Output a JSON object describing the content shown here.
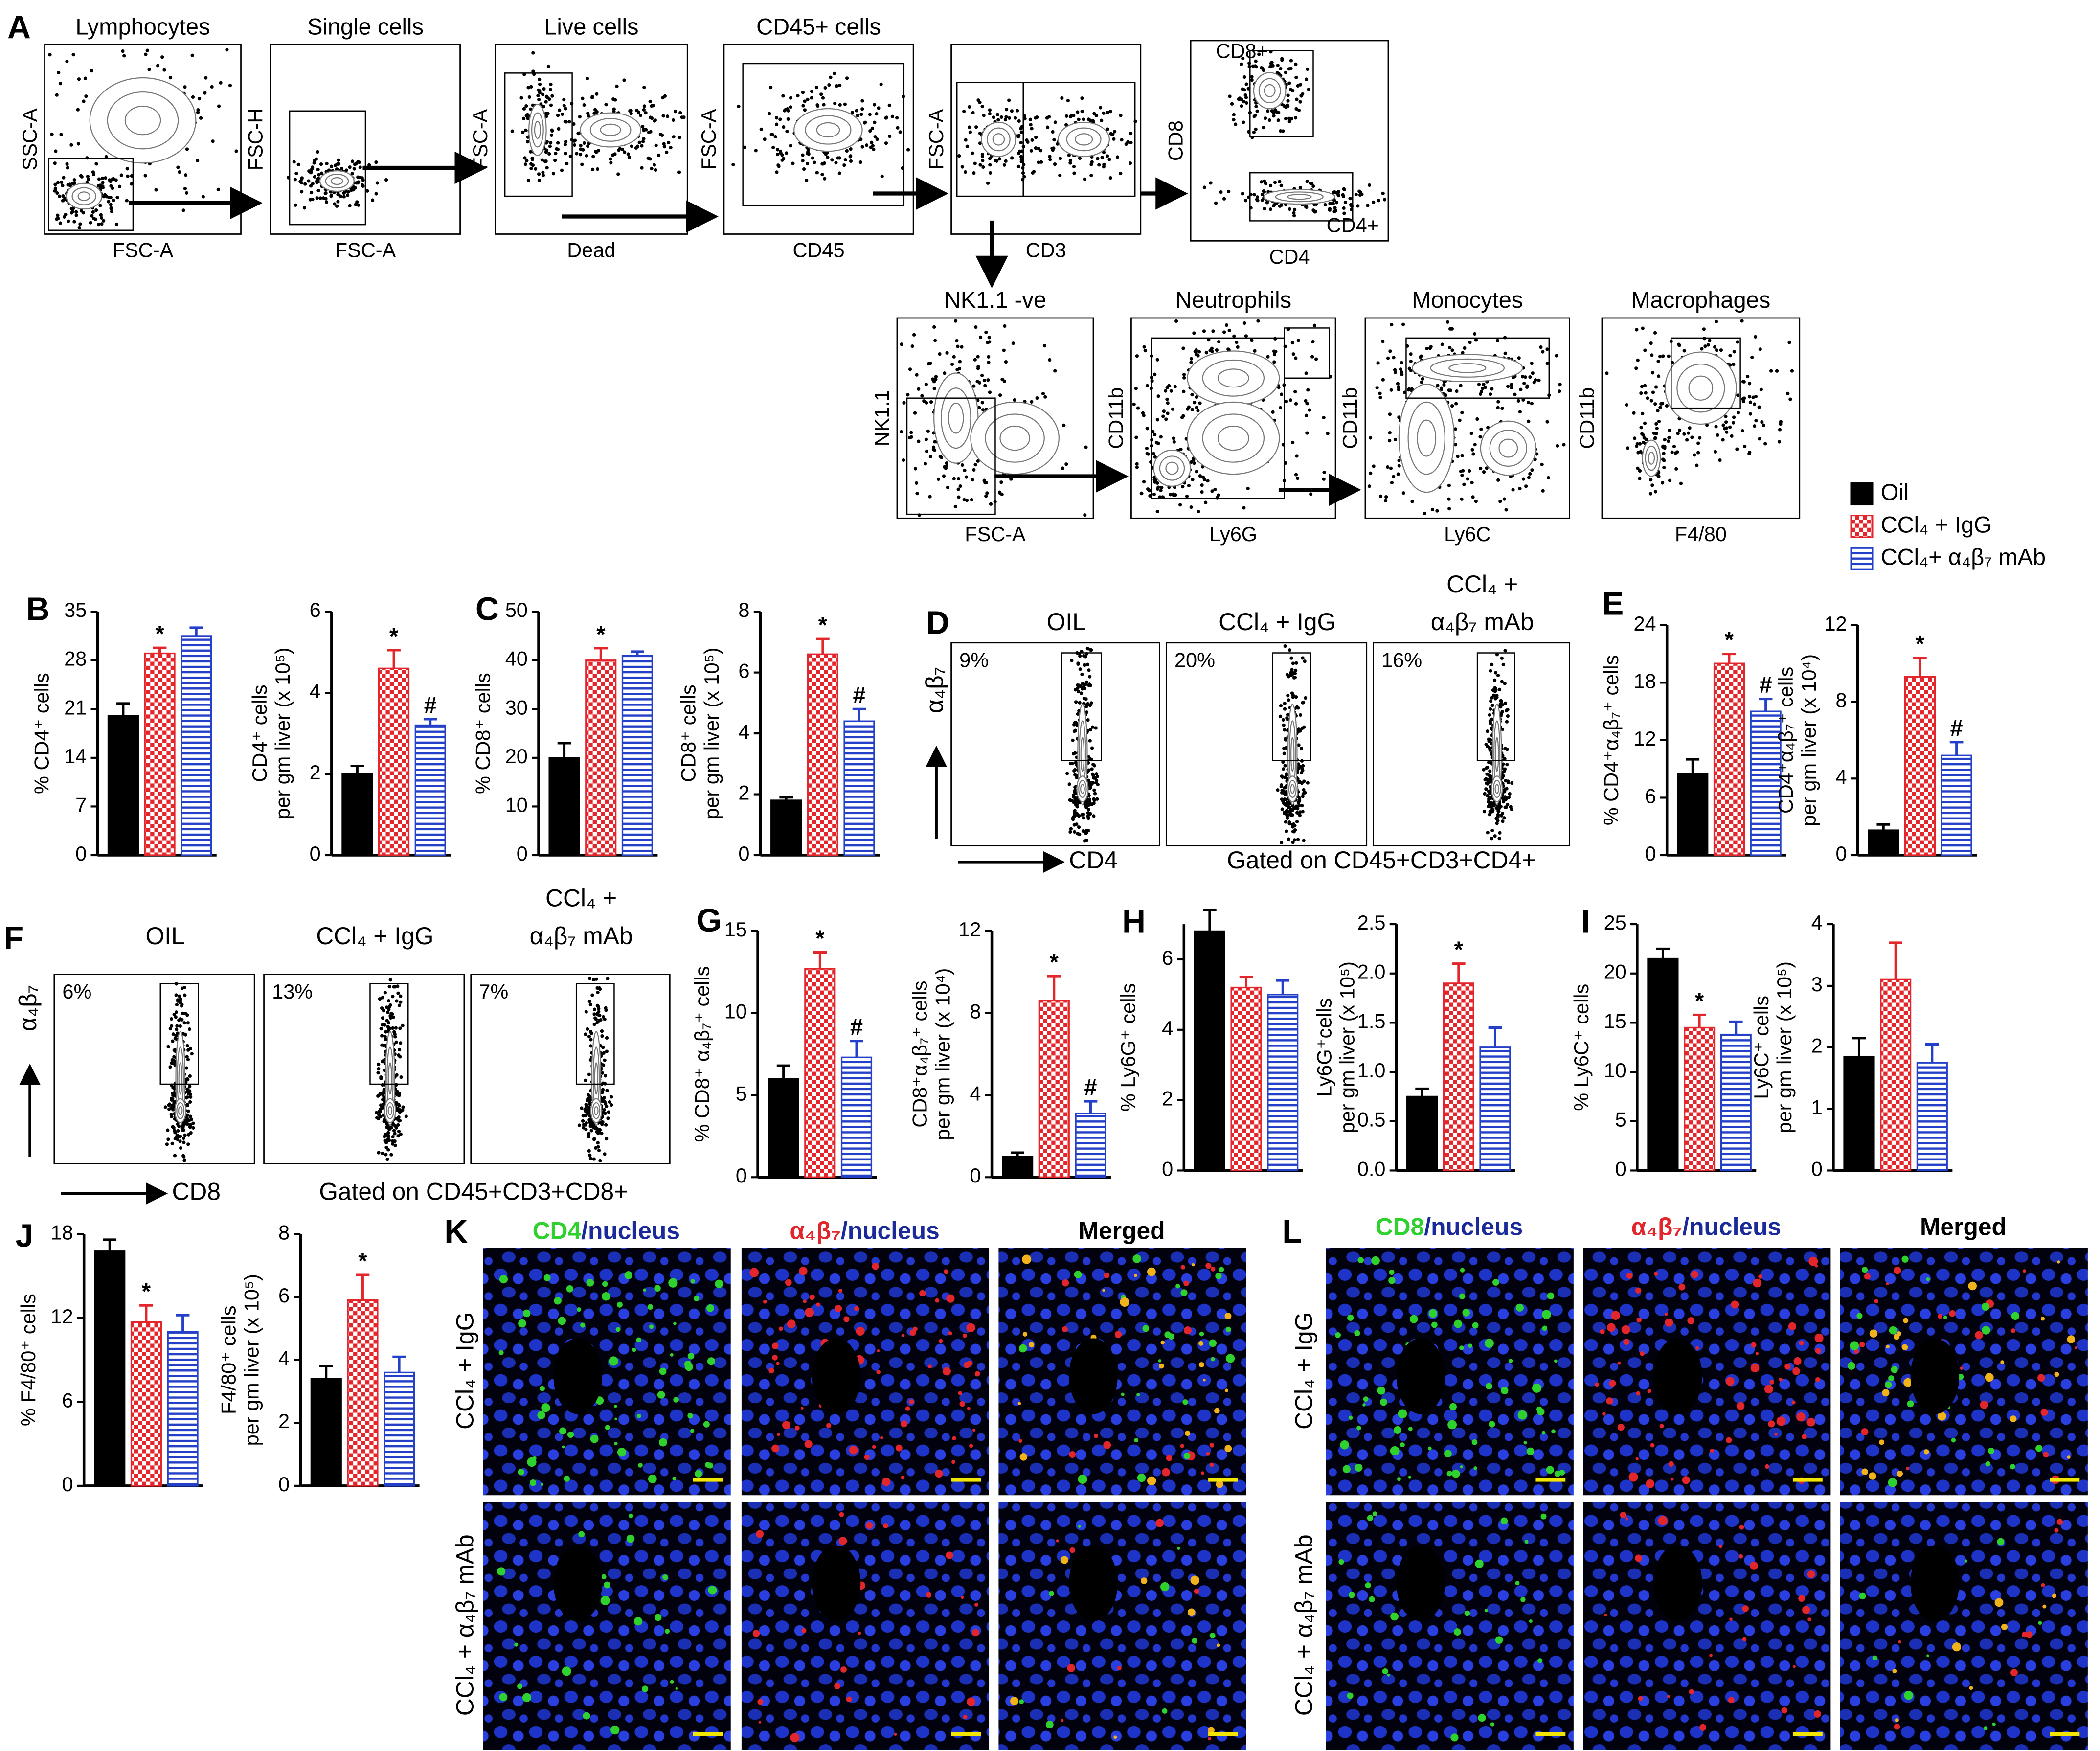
{
  "panels": [
    "A",
    "B",
    "C",
    "D",
    "E",
    "F",
    "G",
    "H",
    "I",
    "J",
    "K",
    "L"
  ],
  "legend": [
    {
      "name": "Oil",
      "color": "#000000",
      "fill": "solid"
    },
    {
      "name": "CCl₄ + IgG",
      "color": "#e3262b",
      "fill": "checker"
    },
    {
      "name": "CCl₄+ α₄β₇ mAb",
      "color": "#2540c8",
      "fill": "stripes"
    }
  ],
  "gating_A": [
    {
      "title": "Lymphocytes",
      "xlabel": "FSC-A",
      "ylabel": "SSC-A"
    },
    {
      "title": "Single cells",
      "xlabel": "FSC-A",
      "ylabel": "FSC-H"
    },
    {
      "title": "Live cells",
      "xlabel": "Dead",
      "ylabel": "FSC-A"
    },
    {
      "title": "CD45+ cells",
      "xlabel": "CD45",
      "ylabel": "FSC-A"
    },
    {
      "xlabel": "CD3",
      "ylabel": "FSC-A"
    },
    {
      "xlabel": "CD4",
      "ylabel": "CD8",
      "gate_labels": [
        "CD8+",
        "CD4+"
      ]
    },
    {
      "title": "NK1.1 -ve",
      "xlabel": "FSC-A",
      "ylabel": "NK1.1"
    },
    {
      "title": "Neutrophils",
      "xlabel": "Ly6G",
      "ylabel": "CD11b"
    },
    {
      "title": "Monocytes",
      "xlabel": "Ly6C",
      "ylabel": "CD11b"
    },
    {
      "title": "Macrophages",
      "xlabel": "F4/80",
      "ylabel": "CD11b"
    }
  ],
  "flow_D": {
    "plots": [
      {
        "title": [
          "OIL"
        ],
        "percent": "9%"
      },
      {
        "title": [
          "CCl₄ + IgG"
        ],
        "percent": "20%"
      },
      {
        "title": [
          "CCl₄ +",
          "α₄β₇ mAb"
        ],
        "percent": "16%"
      }
    ],
    "y_label": "α₄β₇",
    "x_label": "CD4",
    "gate_note": "Gated on CD45+CD3+CD4+"
  },
  "flow_F": {
    "plots": [
      {
        "title": [
          "OIL"
        ],
        "percent": "6%"
      },
      {
        "title": [
          "CCl₄ + IgG"
        ],
        "percent": "13%"
      },
      {
        "title": [
          "CCl₄ +",
          "α₄β₇ mAb"
        ],
        "percent": "7%"
      }
    ],
    "y_label": "α₄β₇",
    "x_label": "CD8",
    "gate_note": "Gated on CD45+CD3+CD8+"
  },
  "micro_K": {
    "columns": [
      [
        {
          "text": "CD4",
          "color": "#2ed12e"
        },
        {
          "text": "/nucleus",
          "color": "#1b2a9a"
        }
      ],
      [
        {
          "text": "α₄β₇",
          "color": "#e3262b"
        },
        {
          "text": "/nucleus",
          "color": "#1b2a9a"
        }
      ],
      [
        {
          "text": "Merged",
          "color": "#000000"
        }
      ]
    ],
    "rows": [
      "CCl₄ + IgG",
      "CCl₄ + α₄β₇ mAb"
    ]
  },
  "micro_L": {
    "columns": [
      [
        {
          "text": "CD8",
          "color": "#2ed12e"
        },
        {
          "text": "/nucleus",
          "color": "#1b2a9a"
        }
      ],
      [
        {
          "text": "α₄β₇",
          "color": "#e3262b"
        },
        {
          "text": "/nucleus",
          "color": "#1b2a9a"
        }
      ],
      [
        {
          "text": "Merged",
          "color": "#000000"
        }
      ]
    ],
    "rows": [
      "CCl₄ + IgG",
      "CCl₄ + α₄β₇ mAb"
    ]
  },
  "chart_data": [
    {
      "type": "bar",
      "ylabel": [
        "% CD4⁺ cells"
      ],
      "ylim": [
        0,
        35
      ],
      "yticks": [
        0,
        7,
        14,
        21,
        28,
        35
      ],
      "values": [
        20,
        29,
        31.5
      ],
      "errors": [
        1.8,
        0.8,
        1.2
      ],
      "significance": [
        null,
        "*",
        null
      ]
    },
    {
      "type": "bar",
      "ylabel": [
        "CD4⁺ cells",
        "per gm liver (x 10⁵)"
      ],
      "ylim": [
        0,
        6
      ],
      "yticks": [
        0,
        2,
        4,
        6
      ],
      "values": [
        2,
        4.6,
        3.2
      ],
      "errors": [
        0.2,
        0.45,
        0.15
      ],
      "significance": [
        null,
        "*",
        "#"
      ]
    },
    {
      "type": "bar",
      "ylabel": [
        "% CD8⁺ cells"
      ],
      "ylim": [
        0,
        50
      ],
      "yticks": [
        0,
        10,
        20,
        30,
        40,
        50
      ],
      "values": [
        20,
        40,
        41
      ],
      "errors": [
        3,
        2.5,
        0.8
      ],
      "significance": [
        null,
        "*",
        null
      ]
    },
    {
      "type": "bar",
      "ylabel": [
        "CD8⁺ cells",
        "per gm liver (x 10⁵)"
      ],
      "ylim": [
        0,
        8
      ],
      "yticks": [
        0,
        2,
        4,
        6,
        8
      ],
      "values": [
        1.8,
        6.6,
        4.4
      ],
      "errors": [
        0.1,
        0.5,
        0.4
      ],
      "significance": [
        null,
        "*",
        "#"
      ]
    },
    {
      "type": "bar",
      "ylabel": [
        "% CD4⁺α₄β₇⁺ cells"
      ],
      "ylim": [
        0,
        24
      ],
      "yticks": [
        0,
        6,
        12,
        18,
        24
      ],
      "values": [
        8.5,
        20,
        15
      ],
      "errors": [
        1.5,
        1,
        1.3
      ],
      "significance": [
        null,
        "*",
        "#"
      ]
    },
    {
      "type": "bar",
      "ylabel": [
        "CD4⁺α₄β₇⁺ cells",
        "per gm liver (x 10⁴)"
      ],
      "ylim": [
        0,
        12
      ],
      "yticks": [
        0,
        4,
        8,
        12
      ],
      "values": [
        1.3,
        9.3,
        5.2
      ],
      "errors": [
        0.3,
        1,
        0.7
      ],
      "significance": [
        null,
        "*",
        "#"
      ]
    },
    {
      "type": "bar",
      "ylabel": [
        "% CD8⁺ α₄β₇⁺ cells"
      ],
      "ylim": [
        0,
        15
      ],
      "yticks": [
        0,
        5,
        10,
        15
      ],
      "values": [
        6,
        12.7,
        7.3
      ],
      "errors": [
        0.8,
        1,
        1
      ],
      "significance": [
        null,
        "*",
        "#"
      ]
    },
    {
      "type": "bar",
      "ylabel": [
        "CD8⁺α₄β₇⁺ cells",
        "per gm liver (x 10⁴)"
      ],
      "ylim": [
        0,
        12
      ],
      "yticks": [
        0,
        4,
        8,
        12
      ],
      "values": [
        1,
        8.6,
        3.1
      ],
      "errors": [
        0.2,
        1.2,
        0.6
      ],
      "significance": [
        null,
        "*",
        "#"
      ]
    },
    {
      "type": "bar",
      "ylabel": [
        "% Ly6G⁺ cells"
      ],
      "ylim": [
        0,
        7
      ],
      "yticks": [
        0,
        2,
        4,
        6
      ],
      "values": [
        6.8,
        5.2,
        5
      ],
      "errors": [
        0.6,
        0.3,
        0.4
      ]
    },
    {
      "type": "bar",
      "ylabel": [
        "Ly6G⁺cells",
        "per gm liver (x 10⁵)"
      ],
      "ylim": [
        0,
        2.5
      ],
      "yticks": [
        {
          "value": 0,
          "label": "0.0"
        },
        0.5,
        {
          "value": 1,
          "label": "1.0"
        },
        1.5,
        {
          "value": 2,
          "label": "2.0"
        },
        2.5
      ],
      "values": [
        0.75,
        1.9,
        1.25
      ],
      "errors": [
        0.08,
        0.2,
        0.2
      ],
      "significance": [
        null,
        "*",
        null
      ]
    },
    {
      "type": "bar",
      "ylabel": [
        "% Ly6C⁺ cells"
      ],
      "ylim": [
        0,
        25
      ],
      "yticks": [
        0,
        5,
        10,
        15,
        20,
        25
      ],
      "values": [
        21.5,
        14.5,
        13.8
      ],
      "errors": [
        1,
        1.3,
        1.3
      ],
      "significance": [
        null,
        "*",
        null
      ]
    },
    {
      "type": "bar",
      "ylabel": [
        "Ly6C⁺ cells",
        "per gm liver (x 10⁵)"
      ],
      "ylim": [
        0,
        4
      ],
      "yticks": [
        0,
        1,
        2,
        3,
        4
      ],
      "values": [
        1.85,
        3.1,
        1.75
      ],
      "errors": [
        0.3,
        0.6,
        0.3
      ]
    },
    {
      "type": "bar",
      "ylabel": [
        "% F4/80⁺ cells"
      ],
      "ylim": [
        0,
        18
      ],
      "yticks": [
        0,
        6,
        12,
        18
      ],
      "values": [
        16.8,
        11.7,
        11
      ],
      "errors": [
        0.8,
        1.2,
        1.2
      ],
      "significance": [
        null,
        "*",
        null
      ]
    },
    {
      "type": "bar",
      "ylabel": [
        "F4/80⁺ cells",
        "per gm liver (x 10⁵)"
      ],
      "ylim": [
        0,
        8
      ],
      "yticks": [
        0,
        2,
        4,
        6,
        8
      ],
      "values": [
        3.4,
        5.9,
        3.6
      ],
      "errors": [
        0.4,
        0.8,
        0.5
      ],
      "significance": [
        null,
        "*",
        null
      ]
    }
  ]
}
